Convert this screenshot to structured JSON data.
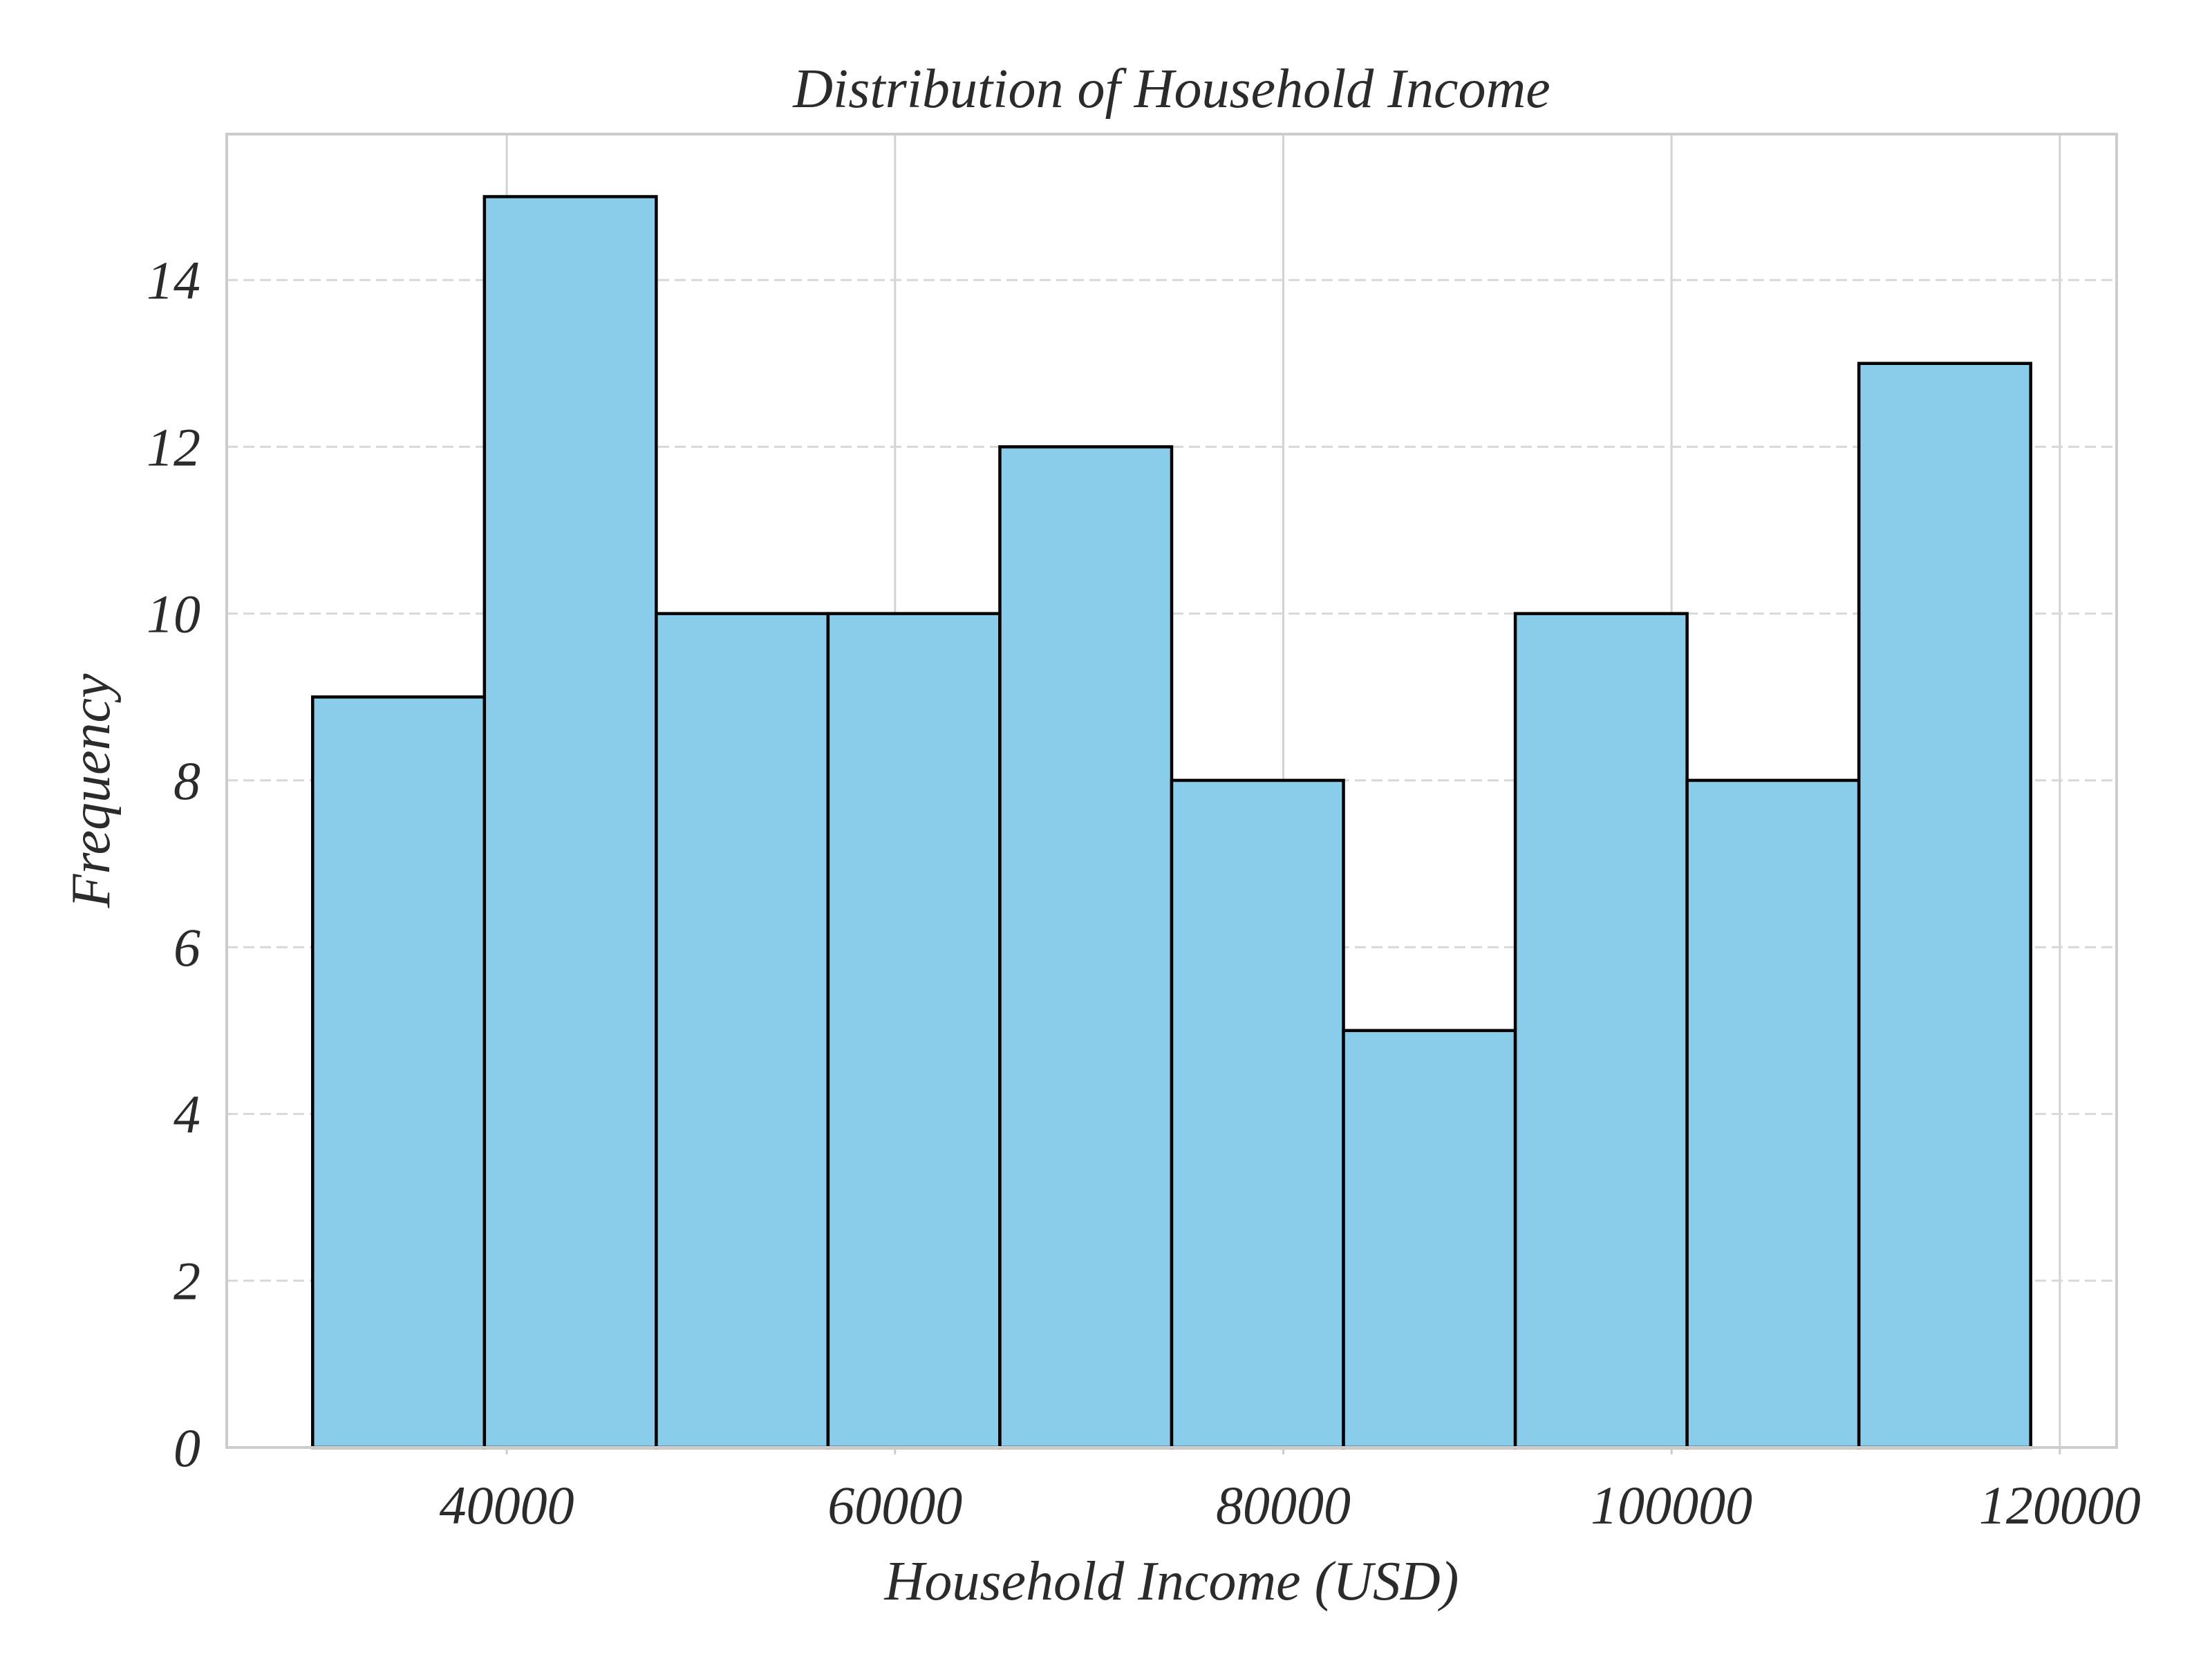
{
  "chart_data": {
    "type": "bar",
    "subtype": "histogram",
    "title": "Distribution of Household Income",
    "xlabel": "Household Income (USD)",
    "ylabel": "Frequency",
    "bins": [
      {
        "start": 30000,
        "end": 38850,
        "count": 9
      },
      {
        "start": 38850,
        "end": 47700,
        "count": 15
      },
      {
        "start": 47700,
        "end": 56550,
        "count": 10
      },
      {
        "start": 56550,
        "end": 65400,
        "count": 10
      },
      {
        "start": 65400,
        "end": 74250,
        "count": 12
      },
      {
        "start": 74250,
        "end": 83100,
        "count": 8
      },
      {
        "start": 83100,
        "end": 91950,
        "count": 5
      },
      {
        "start": 91950,
        "end": 100800,
        "count": 10
      },
      {
        "start": 100800,
        "end": 109650,
        "count": 8
      },
      {
        "start": 109650,
        "end": 118500,
        "count": 13
      }
    ],
    "xlim": [
      25575,
      122925
    ],
    "ylim": [
      0,
      15.75
    ],
    "xticks": [
      40000,
      60000,
      80000,
      100000,
      120000
    ],
    "yticks": [
      0,
      2,
      4,
      6,
      8,
      10,
      12,
      14
    ],
    "grid": {
      "x": true,
      "y": true,
      "y_dashed": true
    },
    "colors": {
      "bar_fill": "#89CDEA",
      "bar_edge": "#000000",
      "grid": "#D2D2D2",
      "frame": "#CCCCCC",
      "text": "#2B2B2B"
    },
    "legend": "none"
  }
}
